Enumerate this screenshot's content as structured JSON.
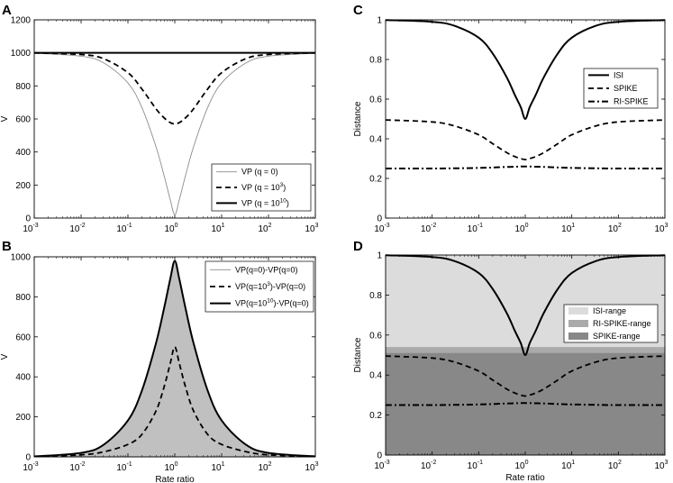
{
  "chart_data": [
    {
      "panel": "A",
      "type": "line",
      "xscale": "log",
      "xlim": [
        0.001,
        1000
      ],
      "ylim": [
        0,
        1200
      ],
      "xticks": [
        "10",
        "10",
        "10",
        "10",
        "10",
        "10",
        "10"
      ],
      "xtick_exponents": [
        "-3",
        "-2",
        "-1",
        "0",
        "1",
        "2",
        "3"
      ],
      "yticks": [
        "0",
        "200",
        "400",
        "600",
        "800",
        "1000",
        "1200"
      ],
      "xlabel": "",
      "ylabel": "V",
      "legend_position": "bottom-right",
      "x": [
        0.001,
        0.01,
        0.03,
        0.1,
        0.2,
        0.4,
        0.6,
        0.8,
        1,
        1.25,
        1.67,
        2.5,
        5,
        10,
        33,
        100,
        1000
      ],
      "series": [
        {
          "name": "VP (q = 0)",
          "name_base": "VP (q = 0)",
          "name_sup": "",
          "name_tail": "",
          "style": "thin-solid",
          "values": [
            998,
            980,
            940,
            818,
            667,
            429,
            250,
            111,
            20,
            111,
            250,
            429,
            667,
            818,
            939,
            980,
            998
          ]
        },
        {
          "name": "VP (q = 10^3)",
          "name_base": "VP (q = 10",
          "name_sup": "3",
          "name_tail": ")",
          "style": "dashed",
          "values": [
            1000,
            990,
            965,
            880,
            780,
            660,
            605,
            578,
            570,
            578,
            605,
            660,
            780,
            880,
            965,
            990,
            1000
          ]
        },
        {
          "name": "VP (q = 10^10)",
          "name_base": "VP (q = 10",
          "name_sup": "10",
          "name_tail": ")",
          "style": "thick-solid",
          "values": [
            1000,
            1000,
            1000,
            1000,
            1000,
            1000,
            1000,
            1000,
            1000,
            1000,
            1000,
            1000,
            1000,
            1000,
            1000,
            1000,
            1000
          ]
        }
      ]
    },
    {
      "panel": "B",
      "type": "area",
      "xscale": "log",
      "xlim": [
        0.001,
        1000
      ],
      "ylim": [
        0,
        1000
      ],
      "xticks": [
        "10",
        "10",
        "10",
        "10",
        "10",
        "10",
        "10"
      ],
      "xtick_exponents": [
        "-3",
        "-2",
        "-1",
        "0",
        "1",
        "2",
        "3"
      ],
      "yticks": [
        "0",
        "200",
        "400",
        "600",
        "800",
        "1000"
      ],
      "xlabel": "Rate ratio",
      "ylabel": "V",
      "legend_position": "top-right",
      "x": [
        0.001,
        0.01,
        0.03,
        0.1,
        0.2,
        0.4,
        0.6,
        0.8,
        1,
        1.25,
        1.67,
        2.5,
        5,
        10,
        33,
        100,
        1000
      ],
      "series": [
        {
          "name": "VP(q=0)-VP(q=0)",
          "name_base": "VP(q=0)-VP(q=0)",
          "name_sup": "",
          "name_tail": "",
          "style": "thin-solid",
          "values": [
            0,
            0,
            0,
            0,
            0,
            0,
            0,
            0,
            0,
            0,
            0,
            0,
            0,
            0,
            0,
            0,
            0
          ]
        },
        {
          "name": "VP(q=10^3)-VP(q=0)",
          "name_base": "VP(q=10",
          "name_sup": "3",
          "name_tail": ")-VP(q=0)",
          "style": "dashed",
          "values": [
            2,
            10,
            25,
            62,
            113,
            231,
            355,
            467,
            550,
            467,
            355,
            231,
            113,
            62,
            26,
            10,
            2
          ]
        },
        {
          "name": "VP(q=10^10)-VP(q=0)",
          "name_base": "VP(q=10",
          "name_sup": "10",
          "name_tail": ")-VP(q=0)",
          "style": "thick-solid",
          "values": [
            2,
            20,
            60,
            182,
            333,
            571,
            750,
            889,
            980,
            889,
            750,
            571,
            333,
            182,
            61,
            20,
            2
          ]
        }
      ]
    },
    {
      "panel": "C",
      "type": "line",
      "xscale": "log",
      "xlim": [
        0.001,
        1000
      ],
      "ylim": [
        0,
        1
      ],
      "xticks": [
        "10",
        "10",
        "10",
        "10",
        "10",
        "10",
        "10"
      ],
      "xtick_exponents": [
        "-3",
        "-2",
        "-1",
        "0",
        "1",
        "2",
        "3"
      ],
      "yticks": [
        "0",
        "0.2",
        "0.4",
        "0.6",
        "0.8",
        "1"
      ],
      "xlabel": "",
      "ylabel": "Distance",
      "legend_position": "right",
      "x": [
        0.001,
        0.01,
        0.03,
        0.1,
        0.2,
        0.4,
        0.6,
        0.8,
        1,
        1.25,
        1.67,
        2.5,
        5,
        10,
        33,
        100,
        1000
      ],
      "series": [
        {
          "name": "ISI",
          "style": "thick-solid",
          "values": [
            0.999,
            0.99,
            0.97,
            0.91,
            0.83,
            0.71,
            0.62,
            0.56,
            0.5,
            0.56,
            0.62,
            0.71,
            0.83,
            0.91,
            0.97,
            0.99,
            0.999
          ]
        },
        {
          "name": "SPIKE",
          "style": "dashed",
          "values": [
            0.495,
            0.485,
            0.465,
            0.42,
            0.375,
            0.33,
            0.31,
            0.3,
            0.295,
            0.3,
            0.31,
            0.33,
            0.375,
            0.42,
            0.465,
            0.485,
            0.495
          ]
        },
        {
          "name": "RI-SPIKE",
          "style": "dash-dot",
          "values": [
            0.25,
            0.25,
            0.251,
            0.253,
            0.255,
            0.258,
            0.259,
            0.26,
            0.26,
            0.26,
            0.259,
            0.258,
            0.255,
            0.253,
            0.251,
            0.25,
            0.25
          ]
        }
      ]
    },
    {
      "panel": "D",
      "type": "line",
      "xscale": "log",
      "xlim": [
        0.001,
        1000
      ],
      "ylim": [
        0,
        1
      ],
      "xticks": [
        "10",
        "10",
        "10",
        "10",
        "10",
        "10",
        "10"
      ],
      "xtick_exponents": [
        "-3",
        "-2",
        "-1",
        "0",
        "1",
        "2",
        "3"
      ],
      "yticks": [
        "0",
        "0.2",
        "0.4",
        "0.6",
        "0.8",
        "1"
      ],
      "xlabel": "Rate ratio",
      "ylabel": "Distance",
      "legend_position": "right",
      "ranges": [
        {
          "name": "ISI-range",
          "from": 0,
          "to": 1,
          "color": "#dcdcdc"
        },
        {
          "name": "RI-SPIKE-range",
          "from": 0,
          "to": 0.54,
          "color": "#aaaaaa"
        },
        {
          "name": "SPIKE-range",
          "from": 0,
          "to": 0.51,
          "color": "#888888"
        }
      ],
      "x": [
        0.001,
        0.01,
        0.03,
        0.1,
        0.2,
        0.4,
        0.6,
        0.8,
        1,
        1.25,
        1.67,
        2.5,
        5,
        10,
        33,
        100,
        1000
      ],
      "series": [
        {
          "name": "ISI",
          "style": "thick-solid",
          "values": [
            0.999,
            0.99,
            0.97,
            0.91,
            0.83,
            0.71,
            0.62,
            0.56,
            0.5,
            0.56,
            0.62,
            0.71,
            0.83,
            0.91,
            0.97,
            0.99,
            0.999
          ]
        },
        {
          "name": "SPIKE",
          "style": "dashed",
          "values": [
            0.495,
            0.485,
            0.465,
            0.42,
            0.375,
            0.33,
            0.31,
            0.3,
            0.295,
            0.3,
            0.31,
            0.33,
            0.375,
            0.42,
            0.465,
            0.485,
            0.495
          ]
        },
        {
          "name": "RI-SPIKE",
          "style": "dash-dot",
          "values": [
            0.25,
            0.25,
            0.251,
            0.253,
            0.255,
            0.258,
            0.259,
            0.26,
            0.26,
            0.26,
            0.259,
            0.258,
            0.255,
            0.253,
            0.251,
            0.25,
            0.25
          ]
        }
      ]
    }
  ],
  "colors": {
    "line": "#000000",
    "thin_line": "#8c8c8c",
    "area_fill": "#c0c0c0",
    "grid_frame": "#000000"
  }
}
